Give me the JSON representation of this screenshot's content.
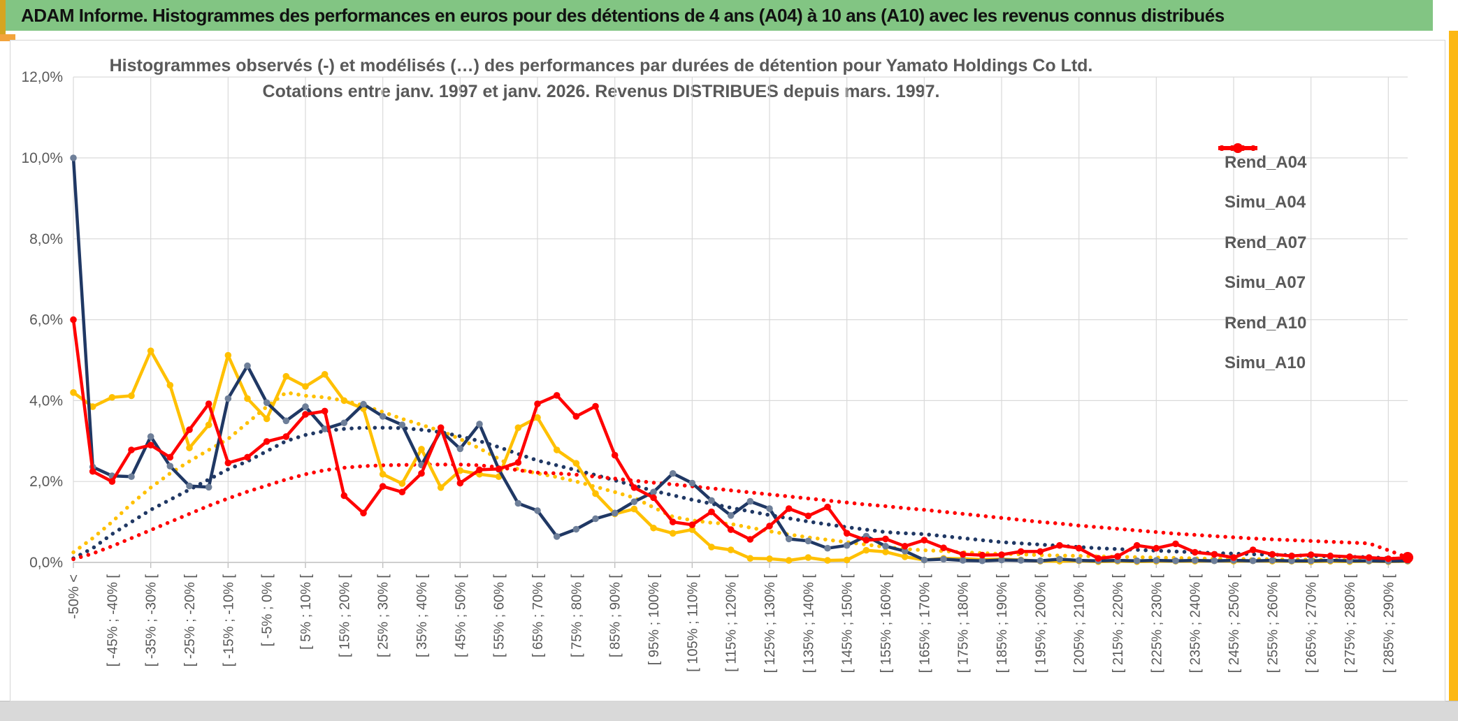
{
  "header": {
    "title": "ADAM Informe. Histogrammes des performances en euros pour des détentions de 4 ans (A04) à 10 ans (A10) avec les revenus connus distribués"
  },
  "colors": {
    "header_green": "#82C583",
    "left_sliver": "#D6A520",
    "left_tab": "#F2A33C",
    "right_strip": "#FCB813",
    "bottom_band": "#D9D9D9",
    "gridline": "#D9D9D9",
    "axis_line": "#BFBFBF",
    "text_gray": "#595959",
    "series_yellow": "#FFC000",
    "series_navy": "#203864",
    "navy_marker": "#6E7F99",
    "series_red": "#FF0000"
  },
  "chart": {
    "title_line1": "Histogrammes observés (-) et modélisés (…) des performances par durées de détention pour Yamato Holdings Co Ltd.",
    "title_line2": "Cotations entre janv. 1997 et janv. 2026. Revenus DISTRIBUES depuis mars. 1997."
  },
  "chart_data": {
    "type": "line",
    "title": "Histogrammes observés (-) et modélisés (…) des performances par durées de détention pour Yamato Holdings Co Ltd. Cotations entre janv. 1997 et janv. 2026. Revenus DISTRIBUES depuis mars. 1997.",
    "ylabel": "",
    "xlabel": "",
    "ylim": [
      0,
      12
    ],
    "y_unit": "percent",
    "y_tick_labels": [
      "0,0%",
      "2,0%",
      "4,0%",
      "6,0%",
      "8,0%",
      "10,0%",
      "12,0%"
    ],
    "grid": true,
    "legend_position": "right",
    "n_points": 70,
    "x_tick_every_n_points": 2,
    "x_gridline_every_n_points": 4,
    "x_tick_labels": [
      "-50% <",
      "[ -45% ; -40% [",
      "[ -35% ; -30% [",
      "[ -25% ; -20% [",
      "[ -15% ; -10% [",
      "[ -5% ; 0% [",
      "[ 5% ; 10% [",
      "[ 15% ; 20% [",
      "[ 25% ; 30% [",
      "[ 35% ; 40% [",
      "[ 45% ; 50% [",
      "[ 55% ; 60% [",
      "[ 65% ; 70% [",
      "[ 75% ; 80% [",
      "[ 85% ; 90% [",
      "[ 95% ; 100% [",
      "[ 105% ; 110% [",
      "[ 115% ; 120% [",
      "[ 125% ; 130% [",
      "[ 135% ; 140% [",
      "[ 145% ; 150% [",
      "[ 155% ; 160% [",
      "[ 165% ; 170% [",
      "[ 175% ; 180% [",
      "[ 185% ; 190% [",
      "[ 195% ; 200% [",
      "[ 205% ; 210% [",
      "[ 215% ; 220% [",
      "[ 225% ; 230% [",
      "[ 235% ; 240% [",
      "[ 245% ; 250% [",
      "[ 255% ; 260% [",
      "[ 265% ; 270% [",
      "[ 275% ; 280% [",
      "[ 285% ; 290% ["
    ],
    "series": [
      {
        "name": "Rend_A04",
        "style": "solid",
        "color": "#FFC000",
        "marker_color": "#FFC000",
        "values": [
          4.2,
          3.85,
          4.08,
          4.12,
          5.23,
          4.38,
          2.83,
          3.4,
          5.12,
          4.05,
          3.55,
          4.6,
          4.35,
          4.65,
          4.0,
          3.8,
          2.18,
          1.95,
          2.8,
          1.85,
          2.27,
          2.18,
          2.12,
          3.33,
          3.58,
          2.78,
          2.45,
          1.7,
          1.2,
          1.32,
          0.85,
          0.72,
          0.81,
          0.38,
          0.31,
          0.1,
          0.09,
          0.05,
          0.12,
          0.05,
          0.06,
          0.3,
          0.26,
          0.14,
          0.06,
          0.1,
          0.09,
          0.07,
          0.08,
          0.06,
          0.03,
          0.03,
          0.04,
          0.02,
          0.03,
          0.02,
          0.03,
          0.03,
          0.03,
          0.04,
          0.03,
          0.04,
          0.03,
          0.03,
          0.02,
          0.03,
          0.02,
          0.03,
          0.02,
          0.03
        ]
      },
      {
        "name": "Simu_A04",
        "style": "dotted",
        "color": "#FFC000",
        "values": [
          0.25,
          0.6,
          1.0,
          1.45,
          1.85,
          2.2,
          2.5,
          2.78,
          3.05,
          3.45,
          3.85,
          4.2,
          4.12,
          4.08,
          4.0,
          3.88,
          3.72,
          3.55,
          3.4,
          3.25,
          3.05,
          2.82,
          2.56,
          2.3,
          2.2,
          2.11,
          2.0,
          1.87,
          1.74,
          1.6,
          1.36,
          1.13,
          1.04,
          0.98,
          0.95,
          0.86,
          0.77,
          0.69,
          0.62,
          0.56,
          0.5,
          0.44,
          0.38,
          0.33,
          0.3,
          0.28,
          0.25,
          0.23,
          0.21,
          0.2,
          0.18,
          0.17,
          0.16,
          0.15,
          0.14,
          0.13,
          0.12,
          0.11,
          0.1,
          0.09,
          0.09,
          0.08,
          0.08,
          0.07,
          0.07,
          0.06,
          0.06,
          0.05,
          0.04,
          0.03
        ]
      },
      {
        "name": "Rend_A07",
        "style": "solid",
        "color": "#203864",
        "marker_color": "#6E7F99",
        "values": [
          10.0,
          2.36,
          2.14,
          2.12,
          3.11,
          2.38,
          1.89,
          1.86,
          4.05,
          4.86,
          3.95,
          3.5,
          3.85,
          3.3,
          3.45,
          3.91,
          3.61,
          3.4,
          2.41,
          3.25,
          2.81,
          3.42,
          2.3,
          1.46,
          1.28,
          0.64,
          0.82,
          1.08,
          1.22,
          1.5,
          1.74,
          2.2,
          1.96,
          1.53,
          1.16,
          1.51,
          1.33,
          0.58,
          0.53,
          0.35,
          0.42,
          0.65,
          0.4,
          0.28,
          0.06,
          0.08,
          0.05,
          0.04,
          0.06,
          0.05,
          0.04,
          0.08,
          0.05,
          0.04,
          0.05,
          0.04,
          0.05,
          0.04,
          0.05,
          0.04,
          0.05,
          0.04,
          0.05,
          0.04,
          0.04,
          0.05,
          0.04,
          0.04,
          0.03,
          0.04
        ]
      },
      {
        "name": "Simu_A07",
        "style": "dotted",
        "color": "#203864",
        "values": [
          0.1,
          0.35,
          0.7,
          1.0,
          1.3,
          1.55,
          1.8,
          2.05,
          2.3,
          2.5,
          2.75,
          3.0,
          3.15,
          3.25,
          3.3,
          3.33,
          3.33,
          3.32,
          3.28,
          3.22,
          3.12,
          3.0,
          2.85,
          2.68,
          2.52,
          2.4,
          2.28,
          2.16,
          2.03,
          1.9,
          1.77,
          1.66,
          1.55,
          1.45,
          1.35,
          1.26,
          1.17,
          1.09,
          1.01,
          0.94,
          0.87,
          0.81,
          0.75,
          0.72,
          0.7,
          0.65,
          0.6,
          0.55,
          0.5,
          0.47,
          0.44,
          0.41,
          0.38,
          0.35,
          0.33,
          0.31,
          0.29,
          0.27,
          0.25,
          0.23,
          0.22,
          0.2,
          0.19,
          0.18,
          0.16,
          0.15,
          0.14,
          0.13,
          0.1,
          0.07
        ]
      },
      {
        "name": "Rend_A10",
        "style": "solid",
        "color": "#FF0000",
        "marker_color": "#FF0000",
        "values": [
          6.0,
          2.25,
          2.0,
          2.78,
          2.9,
          2.6,
          3.28,
          3.92,
          2.46,
          2.6,
          2.99,
          3.11,
          3.66,
          3.74,
          1.65,
          1.22,
          1.88,
          1.74,
          2.2,
          3.33,
          1.96,
          2.29,
          2.31,
          2.47,
          3.92,
          4.13,
          3.61,
          3.86,
          2.65,
          1.85,
          1.6,
          1.0,
          0.93,
          1.25,
          0.81,
          0.57,
          0.9,
          1.33,
          1.15,
          1.37,
          0.72,
          0.55,
          0.58,
          0.4,
          0.55,
          0.36,
          0.2,
          0.18,
          0.19,
          0.27,
          0.27,
          0.42,
          0.35,
          0.1,
          0.15,
          0.42,
          0.35,
          0.46,
          0.25,
          0.2,
          0.12,
          0.31,
          0.2,
          0.16,
          0.19,
          0.16,
          0.14,
          0.12,
          0.09,
          0.12
        ]
      },
      {
        "name": "Simu_A10",
        "style": "dotted",
        "color": "#FF0000",
        "values": [
          0.08,
          0.22,
          0.4,
          0.6,
          0.8,
          1.0,
          1.2,
          1.4,
          1.58,
          1.75,
          1.9,
          2.05,
          2.18,
          2.28,
          2.34,
          2.38,
          2.4,
          2.41,
          2.42,
          2.42,
          2.42,
          2.4,
          2.35,
          2.28,
          2.22,
          2.2,
          2.17,
          2.12,
          2.07,
          2.02,
          1.97,
          1.93,
          1.88,
          1.83,
          1.78,
          1.73,
          1.68,
          1.63,
          1.58,
          1.53,
          1.48,
          1.43,
          1.39,
          1.34,
          1.3,
          1.25,
          1.2,
          1.15,
          1.1,
          1.05,
          1.0,
          0.96,
          0.91,
          0.87,
          0.83,
          0.79,
          0.75,
          0.71,
          0.68,
          0.65,
          0.62,
          0.59,
          0.57,
          0.55,
          0.53,
          0.51,
          0.49,
          0.47,
          0.3,
          0.12
        ]
      }
    ],
    "legend_entries": [
      "Rend_A04",
      "Simu_A04",
      "Rend_A07",
      "Simu_A07",
      "Rend_A10",
      "Simu_A10"
    ]
  }
}
